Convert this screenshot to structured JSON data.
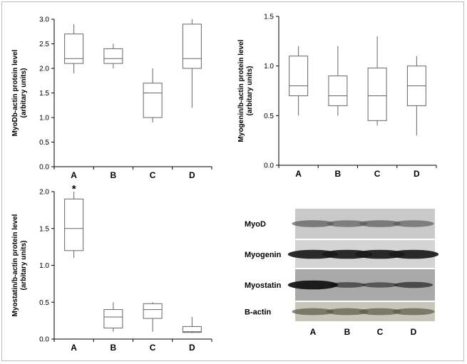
{
  "chart_data": [
    {
      "id": "myod",
      "type": "box",
      "ylabel_line1": "MyoDb-actin protein level",
      "ylabel_line2": "(arbitary units)",
      "ylim": [
        0,
        3.0
      ],
      "yticks": [
        "0.0",
        "0.5",
        "1.0",
        "1.5",
        "2.0",
        "2.5",
        "3.0"
      ],
      "categories": [
        "A",
        "B",
        "C",
        "D"
      ],
      "boxes": [
        {
          "min": 1.9,
          "q1": 2.1,
          "median": 2.2,
          "q3": 2.7,
          "max": 2.9
        },
        {
          "min": 2.0,
          "q1": 2.1,
          "median": 2.2,
          "q3": 2.4,
          "max": 2.5
        },
        {
          "min": 0.9,
          "q1": 1.0,
          "median": 1.5,
          "q3": 1.7,
          "max": 2.0
        },
        {
          "min": 1.2,
          "q1": 2.0,
          "median": 2.2,
          "q3": 2.9,
          "max": 3.0
        }
      ],
      "annotations": []
    },
    {
      "id": "myogenin",
      "type": "box",
      "ylabel_line1": "Myogenin/b-actin protein level",
      "ylabel_line2": "(arbitary units)",
      "ylim": [
        0,
        1.5
      ],
      "yticks": [
        "0.0",
        "0.5",
        "1.0",
        "1.5"
      ],
      "categories": [
        "A",
        "B",
        "C",
        "D"
      ],
      "boxes": [
        {
          "min": 0.5,
          "q1": 0.7,
          "median": 0.8,
          "q3": 1.1,
          "max": 1.2
        },
        {
          "min": 0.5,
          "q1": 0.6,
          "median": 0.7,
          "q3": 0.9,
          "max": 1.2
        },
        {
          "min": 0.4,
          "q1": 0.45,
          "median": 0.7,
          "q3": 0.98,
          "max": 1.3
        },
        {
          "min": 0.3,
          "q1": 0.6,
          "median": 0.8,
          "q3": 1.0,
          "max": 1.1
        }
      ],
      "annotations": []
    },
    {
      "id": "myostatin",
      "type": "box",
      "ylabel_line1": "Myostatin/b-actin protein level",
      "ylabel_line2": "(arbitary units)",
      "ylim": [
        0,
        2.0
      ],
      "yticks": [
        "0.0",
        "0.5",
        "1.0",
        "1.5",
        "2.0"
      ],
      "categories": [
        "A",
        "B",
        "C",
        "D"
      ],
      "boxes": [
        {
          "min": 1.1,
          "q1": 1.2,
          "median": 1.5,
          "q3": 1.9,
          "max": 2.0
        },
        {
          "min": 0.1,
          "q1": 0.15,
          "median": 0.3,
          "q3": 0.4,
          "max": 0.5
        },
        {
          "min": 0.1,
          "q1": 0.28,
          "median": 0.4,
          "q3": 0.48,
          "max": 0.5
        },
        {
          "min": 0.08,
          "q1": 0.09,
          "median": 0.1,
          "q3": 0.17,
          "max": 0.3
        }
      ],
      "annotations": [
        {
          "category": "A",
          "text": "*"
        }
      ]
    }
  ],
  "western_blot": {
    "rows": [
      {
        "label": "MyoD",
        "background": "#c9c9c9",
        "band_color": "#5a5a5a",
        "intensities": [
          0.6,
          0.55,
          0.6,
          0.55
        ]
      },
      {
        "label": "Myogenin",
        "background": "#d4d4d4",
        "band_color": "#1a1a1a",
        "intensities": [
          0.95,
          0.95,
          0.95,
          0.95
        ]
      },
      {
        "label": "Myostatin",
        "background": "#a9a9a9",
        "band_color": "#101010",
        "intensities": [
          0.95,
          0.35,
          0.3,
          0.45
        ]
      },
      {
        "label": "B-actin",
        "background": "#c6c6ba",
        "band_color": "#5a5a48",
        "intensities": [
          0.6,
          0.6,
          0.6,
          0.6
        ]
      }
    ],
    "lanes": [
      "A",
      "B",
      "C",
      "D"
    ]
  }
}
